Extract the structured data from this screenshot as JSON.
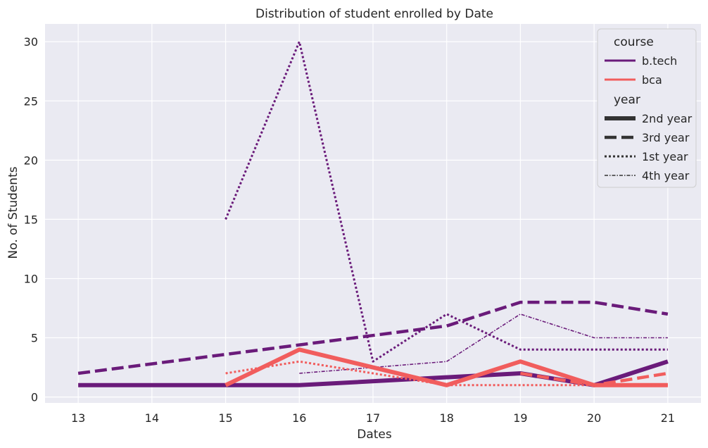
{
  "chart_data": {
    "type": "line",
    "title": "Distribution of student enrolled by Date",
    "xlabel": "Dates",
    "ylabel": "No. of Students",
    "xlim": [
      12.55,
      21.45
    ],
    "ylim": [
      -0.5,
      31.5
    ],
    "xticks": [
      13,
      14,
      15,
      16,
      17,
      18,
      19,
      20,
      21
    ],
    "yticks": [
      0,
      5,
      10,
      15,
      20,
      25,
      30
    ],
    "grid": true,
    "legend": {
      "placement": "top-right",
      "hue_title": "course",
      "hue_entries": [
        {
          "label": "b.tech",
          "color": "#6a1b7a"
        },
        {
          "label": "bca",
          "color": "#f15d5d"
        }
      ],
      "style_title": "year",
      "style_entries": [
        "2nd year",
        "3rd year",
        "1st year",
        "4th year"
      ]
    },
    "colors": {
      "b.tech": "#6a1b7a",
      "bca": "#f15d5d",
      "background": "#eaeaf2",
      "grid": "#ffffff"
    },
    "series": [
      {
        "course": "b.tech",
        "year": "2nd year",
        "x": [
          13,
          16,
          19,
          20,
          21
        ],
        "y": [
          1,
          1,
          2,
          1,
          3
        ]
      },
      {
        "course": "b.tech",
        "year": "3rd year",
        "x": [
          13,
          18,
          19,
          20,
          21
        ],
        "y": [
          2,
          6,
          8,
          8,
          7
        ]
      },
      {
        "course": "b.tech",
        "year": "1st year",
        "x": [
          15,
          16,
          17,
          18,
          19,
          20,
          21
        ],
        "y": [
          15,
          30,
          3,
          7,
          4,
          4,
          4
        ]
      },
      {
        "course": "b.tech",
        "year": "4th year",
        "x": [
          16,
          18,
          19,
          20,
          21
        ],
        "y": [
          2,
          3,
          7,
          5,
          5
        ]
      },
      {
        "course": "bca",
        "year": "2nd year",
        "x": [
          15,
          16,
          18,
          19,
          20,
          21
        ],
        "y": [
          1,
          4,
          1,
          3,
          1,
          1
        ]
      },
      {
        "course": "bca",
        "year": "3rd year",
        "x": [
          19,
          20,
          21
        ],
        "y": [
          2,
          1,
          2
        ]
      },
      {
        "course": "bca",
        "year": "1st year",
        "x": [
          15,
          16,
          18,
          19,
          20,
          21
        ],
        "y": [
          2,
          3,
          1,
          1,
          1,
          1
        ]
      }
    ]
  }
}
